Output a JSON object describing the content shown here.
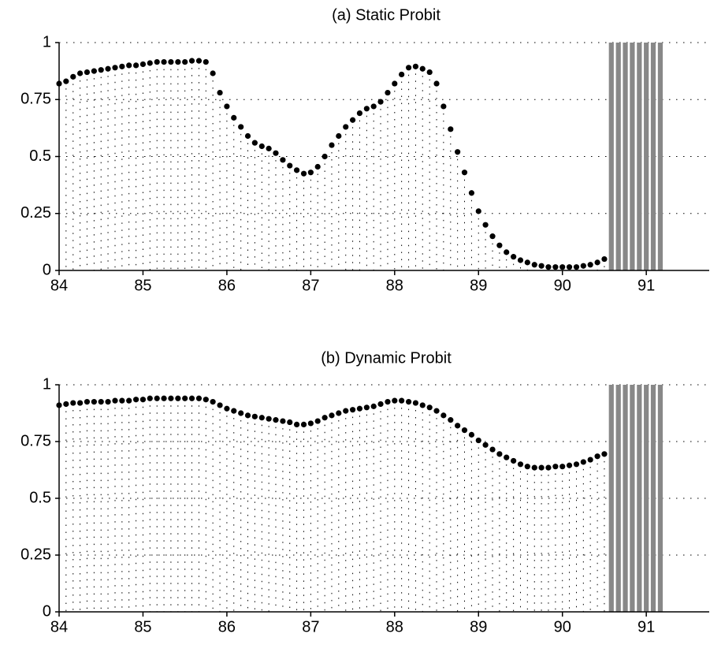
{
  "chart_data": [
    {
      "type": "scatter",
      "title": "(a) Static Probit",
      "x": [
        84,
        84.083,
        84.167,
        84.25,
        84.333,
        84.417,
        84.5,
        84.583,
        84.667,
        84.75,
        84.833,
        84.917,
        85,
        85.083,
        85.167,
        85.25,
        85.333,
        85.417,
        85.5,
        85.583,
        85.667,
        85.75,
        85.833,
        85.917,
        86,
        86.083,
        86.167,
        86.25,
        86.333,
        86.417,
        86.5,
        86.583,
        86.667,
        86.75,
        86.833,
        86.917,
        87,
        87.083,
        87.167,
        87.25,
        87.333,
        87.417,
        87.5,
        87.583,
        87.667,
        87.75,
        87.833,
        87.917,
        88,
        88.083,
        88.167,
        88.25,
        88.333,
        88.417,
        88.5,
        88.583,
        88.667,
        88.75,
        88.833,
        88.917,
        89,
        89.083,
        89.167,
        89.25,
        89.333,
        89.417,
        89.5,
        89.583,
        89.667,
        89.75,
        89.833,
        89.917,
        90,
        90.083,
        90.167,
        90.25,
        90.333,
        90.417,
        90.5
      ],
      "values": [
        0.82,
        0.83,
        0.85,
        0.865,
        0.87,
        0.875,
        0.88,
        0.885,
        0.89,
        0.895,
        0.9,
        0.9,
        0.905,
        0.91,
        0.915,
        0.915,
        0.915,
        0.915,
        0.915,
        0.92,
        0.92,
        0.915,
        0.865,
        0.78,
        0.72,
        0.67,
        0.63,
        0.59,
        0.56,
        0.545,
        0.535,
        0.515,
        0.485,
        0.46,
        0.44,
        0.425,
        0.43,
        0.455,
        0.5,
        0.55,
        0.59,
        0.63,
        0.66,
        0.69,
        0.71,
        0.72,
        0.74,
        0.78,
        0.82,
        0.86,
        0.89,
        0.895,
        0.885,
        0.87,
        0.82,
        0.72,
        0.62,
        0.52,
        0.43,
        0.34,
        0.26,
        0.2,
        0.15,
        0.11,
        0.08,
        0.06,
        0.045,
        0.035,
        0.025,
        0.02,
        0.015,
        0.015,
        0.015,
        0.015,
        0.015,
        0.02,
        0.025,
        0.035,
        0.05
      ],
      "color": "#000000",
      "shading": {
        "x": [
          90.583,
          90.667,
          90.75,
          90.833,
          90.917,
          91,
          91.083,
          91.167
        ],
        "values": [
          1,
          1,
          1,
          1,
          1,
          1,
          1,
          1
        ],
        "color": "#888888"
      },
      "xlim": [
        84,
        91.75
      ],
      "xticks": [
        84,
        85,
        86,
        87,
        88,
        89,
        90,
        91
      ],
      "ylim": [
        0,
        1
      ],
      "yticks": [
        0,
        0.25,
        0.5,
        0.75,
        1
      ],
      "grid": true
    },
    {
      "type": "scatter",
      "title": "(b) Dynamic Probit",
      "x": [
        84,
        84.083,
        84.167,
        84.25,
        84.333,
        84.417,
        84.5,
        84.583,
        84.667,
        84.75,
        84.833,
        84.917,
        85,
        85.083,
        85.167,
        85.25,
        85.333,
        85.417,
        85.5,
        85.583,
        85.667,
        85.75,
        85.833,
        85.917,
        86,
        86.083,
        86.167,
        86.25,
        86.333,
        86.417,
        86.5,
        86.583,
        86.667,
        86.75,
        86.833,
        86.917,
        87,
        87.083,
        87.167,
        87.25,
        87.333,
        87.417,
        87.5,
        87.583,
        87.667,
        87.75,
        87.833,
        87.917,
        88,
        88.083,
        88.167,
        88.25,
        88.333,
        88.417,
        88.5,
        88.583,
        88.667,
        88.75,
        88.833,
        88.917,
        89,
        89.083,
        89.167,
        89.25,
        89.333,
        89.417,
        89.5,
        89.583,
        89.667,
        89.75,
        89.833,
        89.917,
        90,
        90.083,
        90.167,
        90.25,
        90.333,
        90.417,
        90.5
      ],
      "values": [
        0.91,
        0.915,
        0.92,
        0.92,
        0.925,
        0.925,
        0.925,
        0.925,
        0.93,
        0.93,
        0.93,
        0.935,
        0.935,
        0.94,
        0.94,
        0.94,
        0.94,
        0.94,
        0.94,
        0.94,
        0.94,
        0.935,
        0.925,
        0.91,
        0.895,
        0.885,
        0.875,
        0.865,
        0.86,
        0.855,
        0.85,
        0.845,
        0.84,
        0.835,
        0.825,
        0.825,
        0.83,
        0.84,
        0.855,
        0.865,
        0.875,
        0.885,
        0.89,
        0.895,
        0.9,
        0.905,
        0.915,
        0.925,
        0.93,
        0.93,
        0.925,
        0.92,
        0.91,
        0.9,
        0.885,
        0.865,
        0.845,
        0.82,
        0.8,
        0.78,
        0.755,
        0.735,
        0.715,
        0.695,
        0.68,
        0.665,
        0.65,
        0.64,
        0.635,
        0.635,
        0.635,
        0.64,
        0.64,
        0.645,
        0.65,
        0.66,
        0.67,
        0.685,
        0.695
      ],
      "color": "#000000",
      "shading": {
        "x": [
          90.583,
          90.667,
          90.75,
          90.833,
          90.917,
          91,
          91.083,
          91.167
        ],
        "values": [
          1,
          1,
          1,
          1,
          1,
          1,
          1,
          1
        ],
        "color": "#888888"
      },
      "xlim": [
        84,
        91.75
      ],
      "xticks": [
        84,
        85,
        86,
        87,
        88,
        89,
        90,
        91
      ],
      "ylim": [
        0,
        1
      ],
      "yticks": [
        0,
        0.25,
        0.5,
        0.75,
        1
      ],
      "grid": true
    }
  ]
}
